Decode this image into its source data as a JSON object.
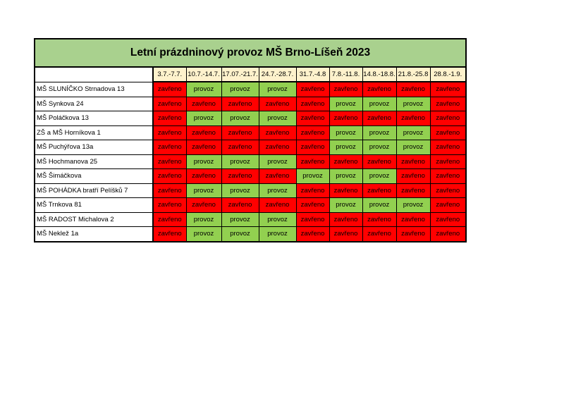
{
  "title": "Letní prázdninový provoz MŠ Brno-Líšeň 2023",
  "weeks": [
    "3.7.-7.7.",
    "10.7.-14.7.",
    "17.07.-21.7.",
    "24.7.-28.7.",
    "31.7.-4.8",
    "7.8.-11.8.",
    "14.8.-18.8.",
    "21.8.-25.8",
    "28.8.-1.9."
  ],
  "labels": {
    "open": "provoz",
    "closed": "zavřeno"
  },
  "colors": {
    "open": "#92d050",
    "closed": "#ff0000",
    "title_bg": "#a9d18e",
    "header_bg": "#fef2cc"
  },
  "schools": [
    {
      "name": "MŠ SLUNÍČKO Strnadova 13",
      "status": [
        "zavřeno",
        "provoz",
        "provoz",
        "provoz",
        "zavřeno",
        "zavřeno",
        "zavřeno",
        "zavřeno",
        "zavřeno"
      ]
    },
    {
      "name": "MŠ Synkova 24",
      "status": [
        "zavřeno",
        "zavřeno",
        "zavřeno",
        "zavřeno",
        "zavřeno",
        "provoz",
        "provoz",
        "provoz",
        "zavřeno"
      ]
    },
    {
      "name": "MŠ Poláčkova 13",
      "status": [
        "zavřeno",
        "provoz",
        "provoz",
        "provoz",
        "zavřeno",
        "zavřeno",
        "zavřeno",
        "zavřeno",
        "zavřeno"
      ]
    },
    {
      "name": "ZŠ a MŠ Horníkova 1",
      "status": [
        "zavřeno",
        "zavřeno",
        "zavřeno",
        "zavřeno",
        "zavřeno",
        "provoz",
        "provoz",
        "provoz",
        "zavřeno"
      ]
    },
    {
      "name": "MŠ Puchýřova 13a",
      "status": [
        "zavřeno",
        "zavřeno",
        "zavřeno",
        "zavřeno",
        "zavřeno",
        "provoz",
        "provoz",
        "provoz",
        "zavřeno"
      ]
    },
    {
      "name": "MŠ Hochmanova 25",
      "status": [
        "zavřeno",
        "provoz",
        "provoz",
        "provoz",
        "zavřeno",
        "zavřeno",
        "zavřeno",
        "zavřeno",
        "zavřeno"
      ]
    },
    {
      "name": "MŠ Šimáčkova",
      "status": [
        "zavřeno",
        "zavřeno",
        "zavřeno",
        "zavřeno",
        "provoz",
        "provoz",
        "provoz",
        "zavřeno",
        "zavřeno"
      ]
    },
    {
      "name": "MŠ POHÁDKA bratří Pelíšků 7",
      "status": [
        "zavřeno",
        "provoz",
        "provoz",
        "provoz",
        "zavřeno",
        "zavřeno",
        "zavřeno",
        "zavřeno",
        "zavřeno"
      ]
    },
    {
      "name": "MŠ Trnkova 81",
      "status": [
        "zavřeno",
        "zavřeno",
        "zavřeno",
        "zavřeno",
        "zavřeno",
        "provoz",
        "provoz",
        "provoz",
        "zavřeno"
      ]
    },
    {
      "name": "MŠ RADOST Michalova 2",
      "status": [
        "zavřeno",
        "provoz",
        "provoz",
        "provoz",
        "zavřeno",
        "zavřeno",
        "zavřeno",
        "zavřeno",
        "zavřeno"
      ]
    },
    {
      "name": "MŠ Neklež 1a",
      "status": [
        "zavřeno",
        "provoz",
        "provoz",
        "provoz",
        "zavřeno",
        "zavřeno",
        "zavřeno",
        "zavřeno",
        "zavřeno"
      ]
    }
  ]
}
